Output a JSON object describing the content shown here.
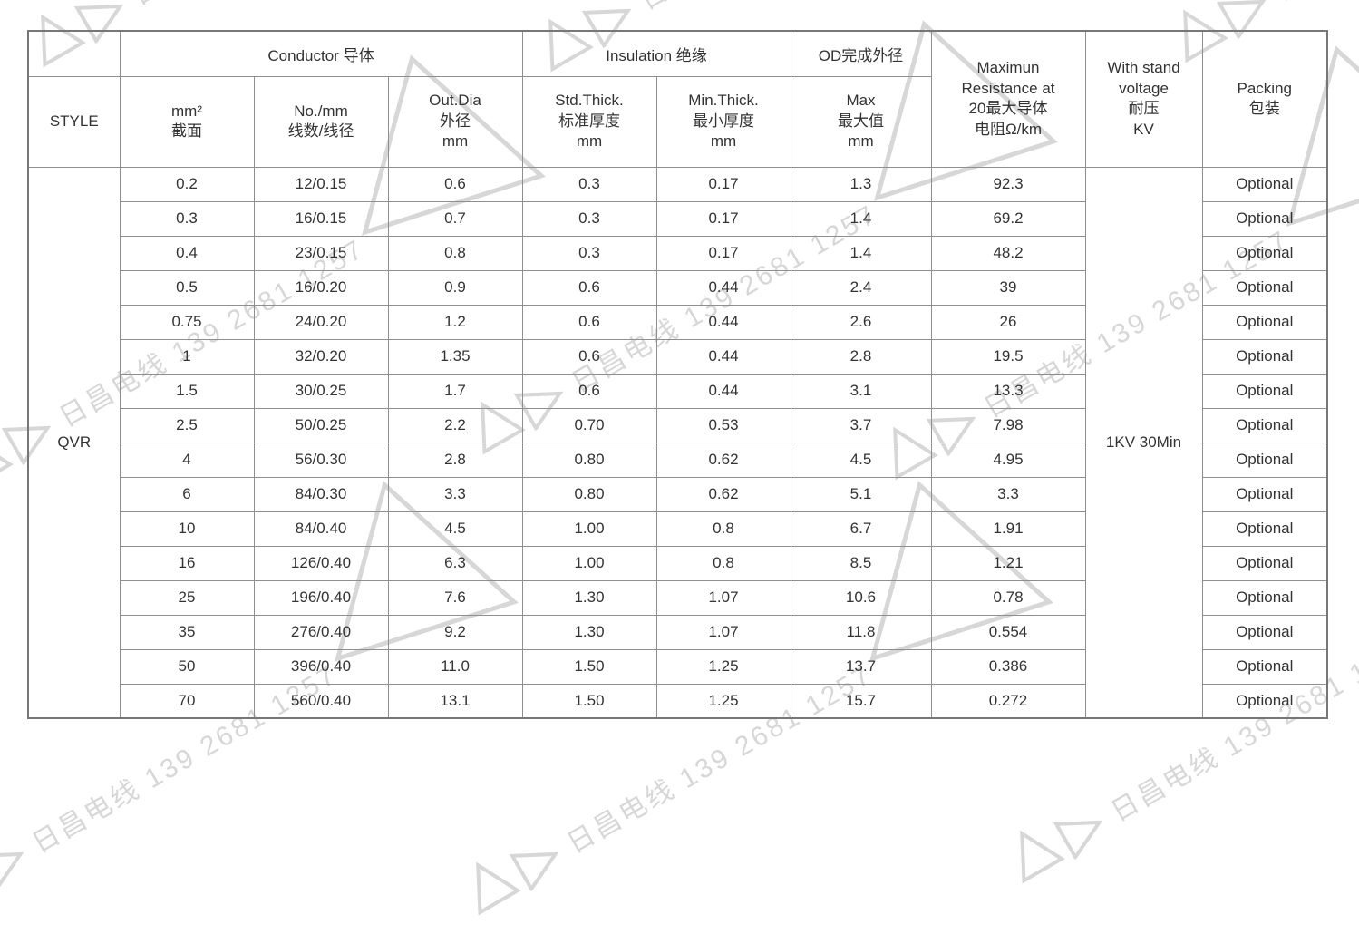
{
  "theme": {
    "wm": "#d7d7d7",
    "ink": "#333333",
    "line": "#8f8f8f"
  },
  "watermark": {
    "text": "日昌电线 139 2681 1257"
  },
  "table": {
    "style_header": "STYLE",
    "groups": {
      "conductor": "Conductor 导体",
      "insulation": "Insulation 绝缘",
      "od": "OD完成外径"
    },
    "columns": {
      "mm2": "mm²\n截面",
      "no_mm": "No./mm\n线数/线径",
      "out_dia": "Out.Dia\n外径\nmm",
      "std_thick": "Std.Thick.\n标准厚度\nmm",
      "min_thick": "Min.Thick.\n最小厚度\nmm",
      "od_max": "Max\n最大值\nmm",
      "resistance": "Maximun\nResistance at\n20最大导体\n电阻Ω/km",
      "voltage": "With stand\nvoltage\n耐压\nKV",
      "packing": "Packing\n包装"
    },
    "style_value": "QVR",
    "voltage_value": "1KV 30Min",
    "rows": [
      {
        "mm2": "0.2",
        "no_mm": "12/0.15",
        "out_dia": "0.6",
        "std_thick": "0.3",
        "min_thick": "0.17",
        "od_max": "1.3",
        "resistance": "92.3",
        "packing": "Optional"
      },
      {
        "mm2": "0.3",
        "no_mm": "16/0.15",
        "out_dia": "0.7",
        "std_thick": "0.3",
        "min_thick": "0.17",
        "od_max": "1.4",
        "resistance": "69.2",
        "packing": "Optional"
      },
      {
        "mm2": "0.4",
        "no_mm": "23/0.15",
        "out_dia": "0.8",
        "std_thick": "0.3",
        "min_thick": "0.17",
        "od_max": "1.4",
        "resistance": "48.2",
        "packing": "Optional"
      },
      {
        "mm2": "0.5",
        "no_mm": "16/0.20",
        "out_dia": "0.9",
        "std_thick": "0.6",
        "min_thick": "0.44",
        "od_max": "2.4",
        "resistance": "39",
        "packing": "Optional"
      },
      {
        "mm2": "0.75",
        "no_mm": "24/0.20",
        "out_dia": "1.2",
        "std_thick": "0.6",
        "min_thick": "0.44",
        "od_max": "2.6",
        "resistance": "26",
        "packing": "Optional"
      },
      {
        "mm2": "1",
        "no_mm": "32/0.20",
        "out_dia": "1.35",
        "std_thick": "0.6",
        "min_thick": "0.44",
        "od_max": "2.8",
        "resistance": "19.5",
        "packing": "Optional"
      },
      {
        "mm2": "1.5",
        "no_mm": "30/0.25",
        "out_dia": "1.7",
        "std_thick": "0.6",
        "min_thick": "0.44",
        "od_max": "3.1",
        "resistance": "13.3",
        "packing": "Optional"
      },
      {
        "mm2": "2.5",
        "no_mm": "50/0.25",
        "out_dia": "2.2",
        "std_thick": "0.70",
        "min_thick": "0.53",
        "od_max": "3.7",
        "resistance": "7.98",
        "packing": "Optional"
      },
      {
        "mm2": "4",
        "no_mm": "56/0.30",
        "out_dia": "2.8",
        "std_thick": "0.80",
        "min_thick": "0.62",
        "od_max": "4.5",
        "resistance": "4.95",
        "packing": "Optional"
      },
      {
        "mm2": "6",
        "no_mm": "84/0.30",
        "out_dia": "3.3",
        "std_thick": "0.80",
        "min_thick": "0.62",
        "od_max": "5.1",
        "resistance": "3.3",
        "packing": "Optional"
      },
      {
        "mm2": "10",
        "no_mm": "84/0.40",
        "out_dia": "4.5",
        "std_thick": "1.00",
        "min_thick": "0.8",
        "od_max": "6.7",
        "resistance": "1.91",
        "packing": "Optional"
      },
      {
        "mm2": "16",
        "no_mm": "126/0.40",
        "out_dia": "6.3",
        "std_thick": "1.00",
        "min_thick": "0.8",
        "od_max": "8.5",
        "resistance": "1.21",
        "packing": "Optional"
      },
      {
        "mm2": "25",
        "no_mm": "196/0.40",
        "out_dia": "7.6",
        "std_thick": "1.30",
        "min_thick": "1.07",
        "od_max": "10.6",
        "resistance": "0.78",
        "packing": "Optional"
      },
      {
        "mm2": "35",
        "no_mm": "276/0.40",
        "out_dia": "9.2",
        "std_thick": "1.30",
        "min_thick": "1.07",
        "od_max": "11.8",
        "resistance": "0.554",
        "packing": "Optional"
      },
      {
        "mm2": "50",
        "no_mm": "396/0.40",
        "out_dia": "11.0",
        "std_thick": "1.50",
        "min_thick": "1.25",
        "od_max": "13.7",
        "resistance": "0.386",
        "packing": "Optional"
      },
      {
        "mm2": "70",
        "no_mm": "560/0.40",
        "out_dia": "13.1",
        "std_thick": "1.50",
        "min_thick": "1.25",
        "od_max": "15.7",
        "resistance": "0.272",
        "packing": "Optional"
      }
    ]
  }
}
